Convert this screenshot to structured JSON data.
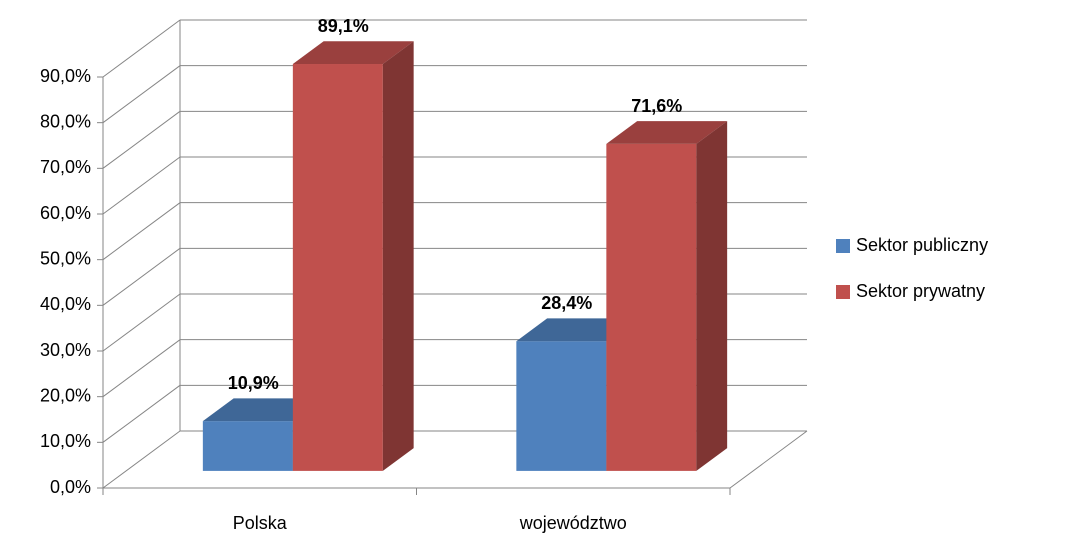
{
  "chart_data": {
    "type": "bar3d",
    "categories": [
      "Polska",
      "województwo"
    ],
    "series": [
      {
        "name": "Sektor publiczny",
        "color": "#4f81bd",
        "values": [
          10.9,
          28.4
        ],
        "value_labels": [
          "10,9%",
          "28,4%"
        ]
      },
      {
        "name": "Sektor prywatny",
        "color": "#c0504d",
        "values": [
          89.1,
          71.6
        ],
        "value_labels": [
          "89,1%",
          "71,6%"
        ]
      }
    ],
    "ylim": [
      0,
      90
    ],
    "yticks": [
      {
        "value": 0,
        "label": "0,0%"
      },
      {
        "value": 10,
        "label": "10,0%"
      },
      {
        "value": 20,
        "label": "20,0%"
      },
      {
        "value": 30,
        "label": "30,0%"
      },
      {
        "value": 40,
        "label": "40,0%"
      },
      {
        "value": 50,
        "label": "50,0%"
      },
      {
        "value": 60,
        "label": "60,0%"
      },
      {
        "value": 70,
        "label": "70,0%"
      },
      {
        "value": 80,
        "label": "80,0%"
      },
      {
        "value": 90,
        "label": "90,0%"
      }
    ],
    "grid": true,
    "legend": "right"
  }
}
